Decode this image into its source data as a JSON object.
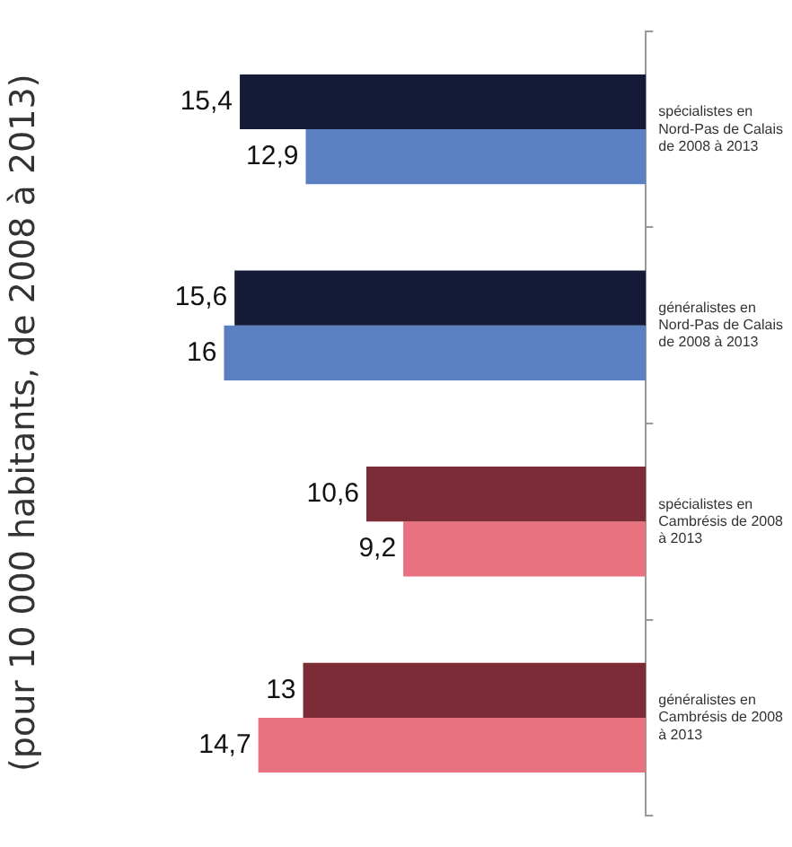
{
  "chart_data": {
    "type": "bar",
    "orientation": "horizontal",
    "title": "(pour 10 000 habitants, de 2008 à 2013)",
    "categories": [
      "spécialistes en Nord-Pas de Calais de 2008 à 2013",
      "généralistes en Nord-Pas de Calais de 2008 à 2013",
      "spécialistes en Cambrésis de 2008 à 2013",
      "généralistes en Cambrésis de 2008 à 2013"
    ],
    "series": [
      {
        "colors": [
          "#161c38",
          "#161c38",
          "#7b2c37",
          "#7b2c37"
        ],
        "values": [
          15.4,
          15.6,
          10.6,
          13
        ],
        "value_labels": [
          "15,4",
          "15,6",
          "10,6",
          "13"
        ]
      },
      {
        "colors": [
          "#5b80c2",
          "#5b80c2",
          "#e8727f",
          "#e8727f"
        ],
        "values": [
          12.9,
          16,
          9.2,
          14.7
        ],
        "value_labels": [
          "12,9",
          "16",
          "9,2",
          "14,7"
        ]
      }
    ],
    "grid": false,
    "legend": false
  }
}
